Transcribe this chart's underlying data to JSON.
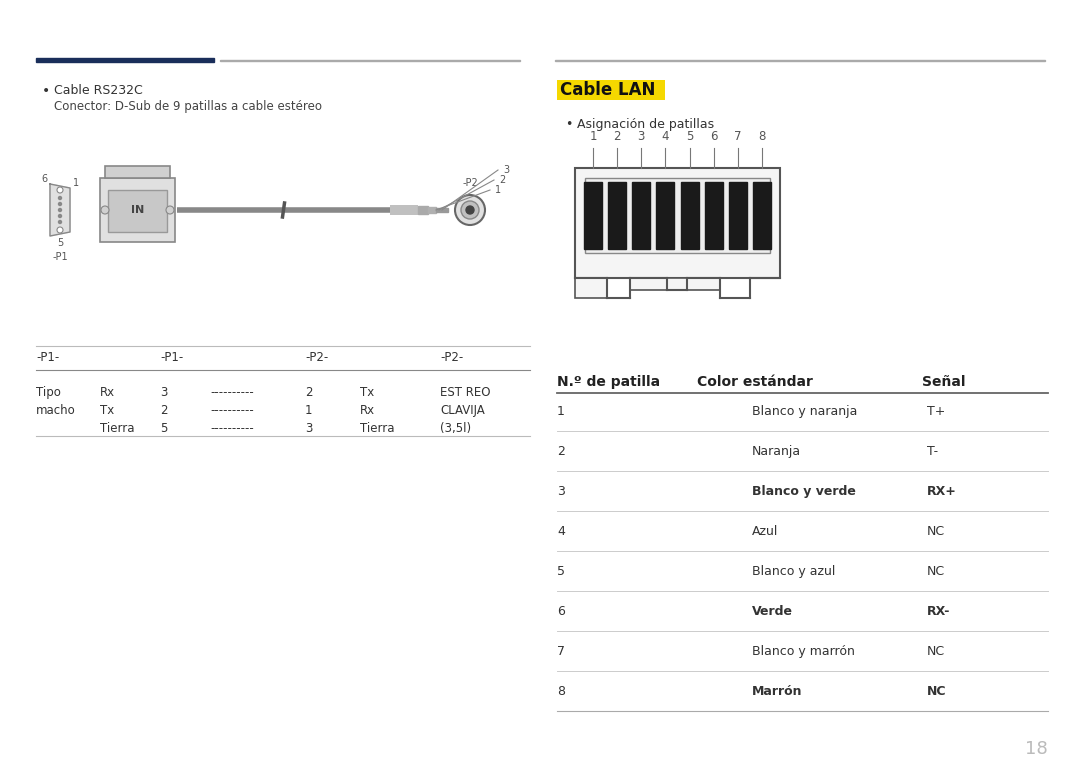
{
  "bg_color": "#ffffff",
  "page_number": "18",
  "section_line_color1": "#1a2e5a",
  "section_line_color2": "#aaaaaa",
  "cable_rs232c_bullet": "Cable RS232C",
  "cable_rs232c_sub": "Conector: D-Sub de 9 patillas a cable estéreo",
  "cable_lan_title": "Cable LAN",
  "cable_lan_title_bg": "#f5d800",
  "asignacion_bullet": "Asignación de patillas",
  "table_header": [
    "N.º de patilla",
    "Color estándar",
    "Señal"
  ],
  "table_rows": [
    [
      "1",
      "Blanco y naranja",
      "T+"
    ],
    [
      "2",
      "Naranja",
      "T-"
    ],
    [
      "3",
      "Blanco y verde",
      "RX+"
    ],
    [
      "4",
      "Azul",
      "NC"
    ],
    [
      "5",
      "Blanco y azul",
      "NC"
    ],
    [
      "6",
      "Verde",
      "RX-"
    ],
    [
      "7",
      "Blanco y marrón",
      "NC"
    ],
    [
      "8",
      "Marrón",
      "NC"
    ]
  ],
  "bold_rows": [
    3,
    6,
    8
  ],
  "p1_table_rows": [
    [
      "Tipo",
      "Rx",
      "3",
      "----------",
      "2",
      "Tx",
      "EST REO"
    ],
    [
      "macho",
      "Tx",
      "2",
      "----------",
      "1",
      "Rx",
      "CLAVIJA"
    ],
    [
      "",
      "Tierra",
      "5",
      "----------",
      "3",
      "Tierra",
      "(3,5l)"
    ]
  ]
}
